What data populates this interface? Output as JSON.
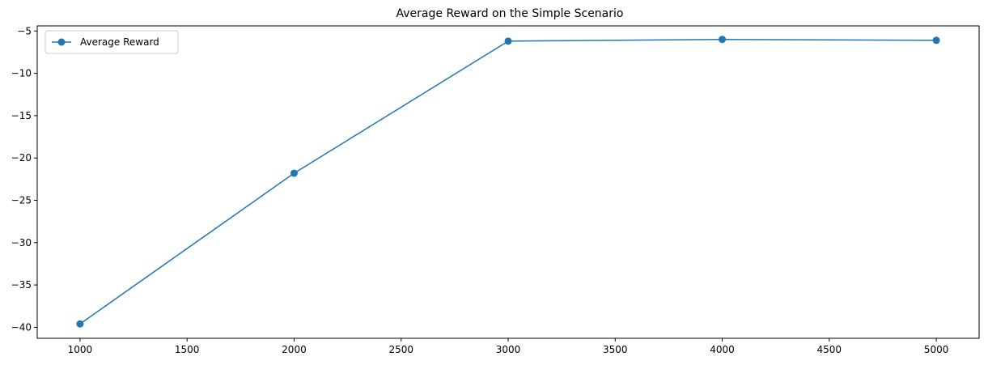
{
  "chart_data": {
    "type": "line",
    "title": "Average Reward on the Simple Scenario",
    "xlabel": "",
    "ylabel": "",
    "x": [
      1000,
      2000,
      3000,
      4000,
      5000
    ],
    "series": [
      {
        "name": "Average Reward",
        "values": [
          -39.6,
          -21.8,
          -6.2,
          -6.0,
          -6.1
        ],
        "color": "#1f77b4",
        "marker": "circle"
      }
    ],
    "xlim": [
      800,
      5200
    ],
    "ylim": [
      -41.3,
      -4.4
    ],
    "xticks": [
      1000,
      1500,
      2000,
      2500,
      3000,
      3500,
      4000,
      4500,
      5000
    ],
    "yticks": [
      -40,
      -35,
      -30,
      -25,
      -20,
      -15,
      -10,
      -5
    ],
    "grid": false,
    "legend": "top-left"
  }
}
